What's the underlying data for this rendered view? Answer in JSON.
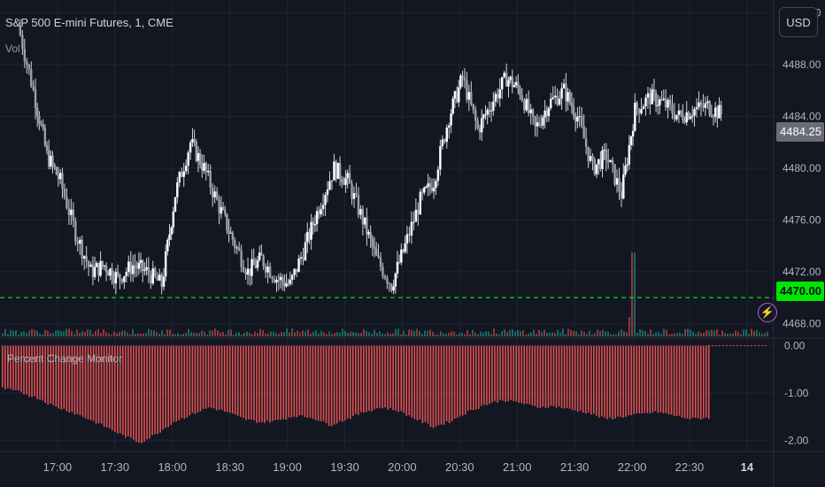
{
  "header": {
    "symbol_title": "S&P 500 E-mini Futures, 1, CME",
    "volume_label": "Vol",
    "currency_button": "USD"
  },
  "price_tags": {
    "last_price": "4484.25",
    "line_price": "4470.00"
  },
  "indicator": {
    "title": "Percent Change Monitor"
  },
  "colors": {
    "background": "#131722",
    "grid": "#1f2433",
    "candle": "#d1d4dc",
    "volume": "#26a69a",
    "volume_down": "#ef5350",
    "hist_bar": "#e05252",
    "dashed_line": "#00e600",
    "alert_accent": "#b05de0"
  },
  "icons": {
    "alert": "lightning-bolt-icon"
  },
  "chart_data": [
    {
      "type": "line",
      "title": "S&P 500 E-mini Futures, 1, CME",
      "x_tick_labels": [
        "17:00",
        "17:30",
        "18:00",
        "18:30",
        "19:00",
        "19:30",
        "20:00",
        "20:30",
        "21:00",
        "21:30",
        "22:00",
        "22:30",
        "14"
      ],
      "y_tick_labels": [
        "4492.00",
        "4488.00",
        "4484.00",
        "4480.00",
        "4476.00",
        "4472.00",
        "4468.00"
      ],
      "ylim": [
        4467,
        4493
      ],
      "horizontal_line": 4470.0,
      "last_price": 4484.25,
      "series": [
        {
          "x": [
            "16:40",
            "16:48",
            "16:55",
            "17:02",
            "17:10",
            "17:18",
            "17:25",
            "17:32",
            "17:40",
            "17:47",
            "17:55",
            "18:02",
            "18:10",
            "18:17",
            "18:25",
            "18:32",
            "18:40",
            "18:47",
            "18:55",
            "19:02",
            "19:10",
            "19:17",
            "19:25",
            "19:32",
            "19:40",
            "19:47",
            "19:55",
            "20:02",
            "20:10",
            "20:17",
            "20:25",
            "20:32",
            "20:40",
            "20:47",
            "20:55",
            "21:02",
            "21:10",
            "21:17",
            "21:25",
            "21:32",
            "21:40",
            "21:47",
            "21:55",
            "22:02",
            "22:10",
            "22:17",
            "22:25",
            "22:32",
            "22:40",
            "22:47"
          ],
          "values": [
            4491.0,
            4486.0,
            4481.0,
            4479.0,
            4475.0,
            4472.0,
            4472.5,
            4471.5,
            4472.5,
            4472.0,
            4471.0,
            4478.0,
            4482.0,
            4480.0,
            4477.0,
            4474.5,
            4472.0,
            4473.0,
            4471.5,
            4471.0,
            4474.0,
            4477.0,
            4480.0,
            4479.0,
            4476.0,
            4473.0,
            4471.0,
            4474.0,
            4477.5,
            4479.0,
            4484.0,
            4487.0,
            4483.0,
            4485.0,
            4487.0,
            4486.0,
            4483.0,
            4485.0,
            4486.0,
            4484.0,
            4480.0,
            4481.0,
            4478.0,
            4484.5,
            4485.5,
            4485.0,
            4484.0,
            4484.5,
            4484.8,
            4484.2
          ]
        }
      ]
    },
    {
      "type": "bar",
      "title": "Percent Change Monitor",
      "y_tick_labels": [
        "0.00",
        "-1.00",
        "-2.00"
      ],
      "ylim": [
        -2.2,
        0.1
      ],
      "series": [
        {
          "name": "Percent Change Monitor",
          "values": [
            -0.9,
            -0.98,
            -1.1,
            -1.28,
            -1.4,
            -1.55,
            -1.72,
            -1.9,
            -2.05,
            -1.85,
            -1.6,
            -1.45,
            -1.3,
            -1.4,
            -1.55,
            -1.62,
            -1.58,
            -1.48,
            -1.52,
            -1.68,
            -1.55,
            -1.4,
            -1.3,
            -1.38,
            -1.55,
            -1.72,
            -1.6,
            -1.4,
            -1.25,
            -1.15,
            -1.2,
            -1.3,
            -1.28,
            -1.35,
            -1.42,
            -1.55,
            -1.5,
            -1.45,
            -1.4,
            -1.48,
            -1.55,
            -1.52
          ]
        }
      ]
    }
  ]
}
